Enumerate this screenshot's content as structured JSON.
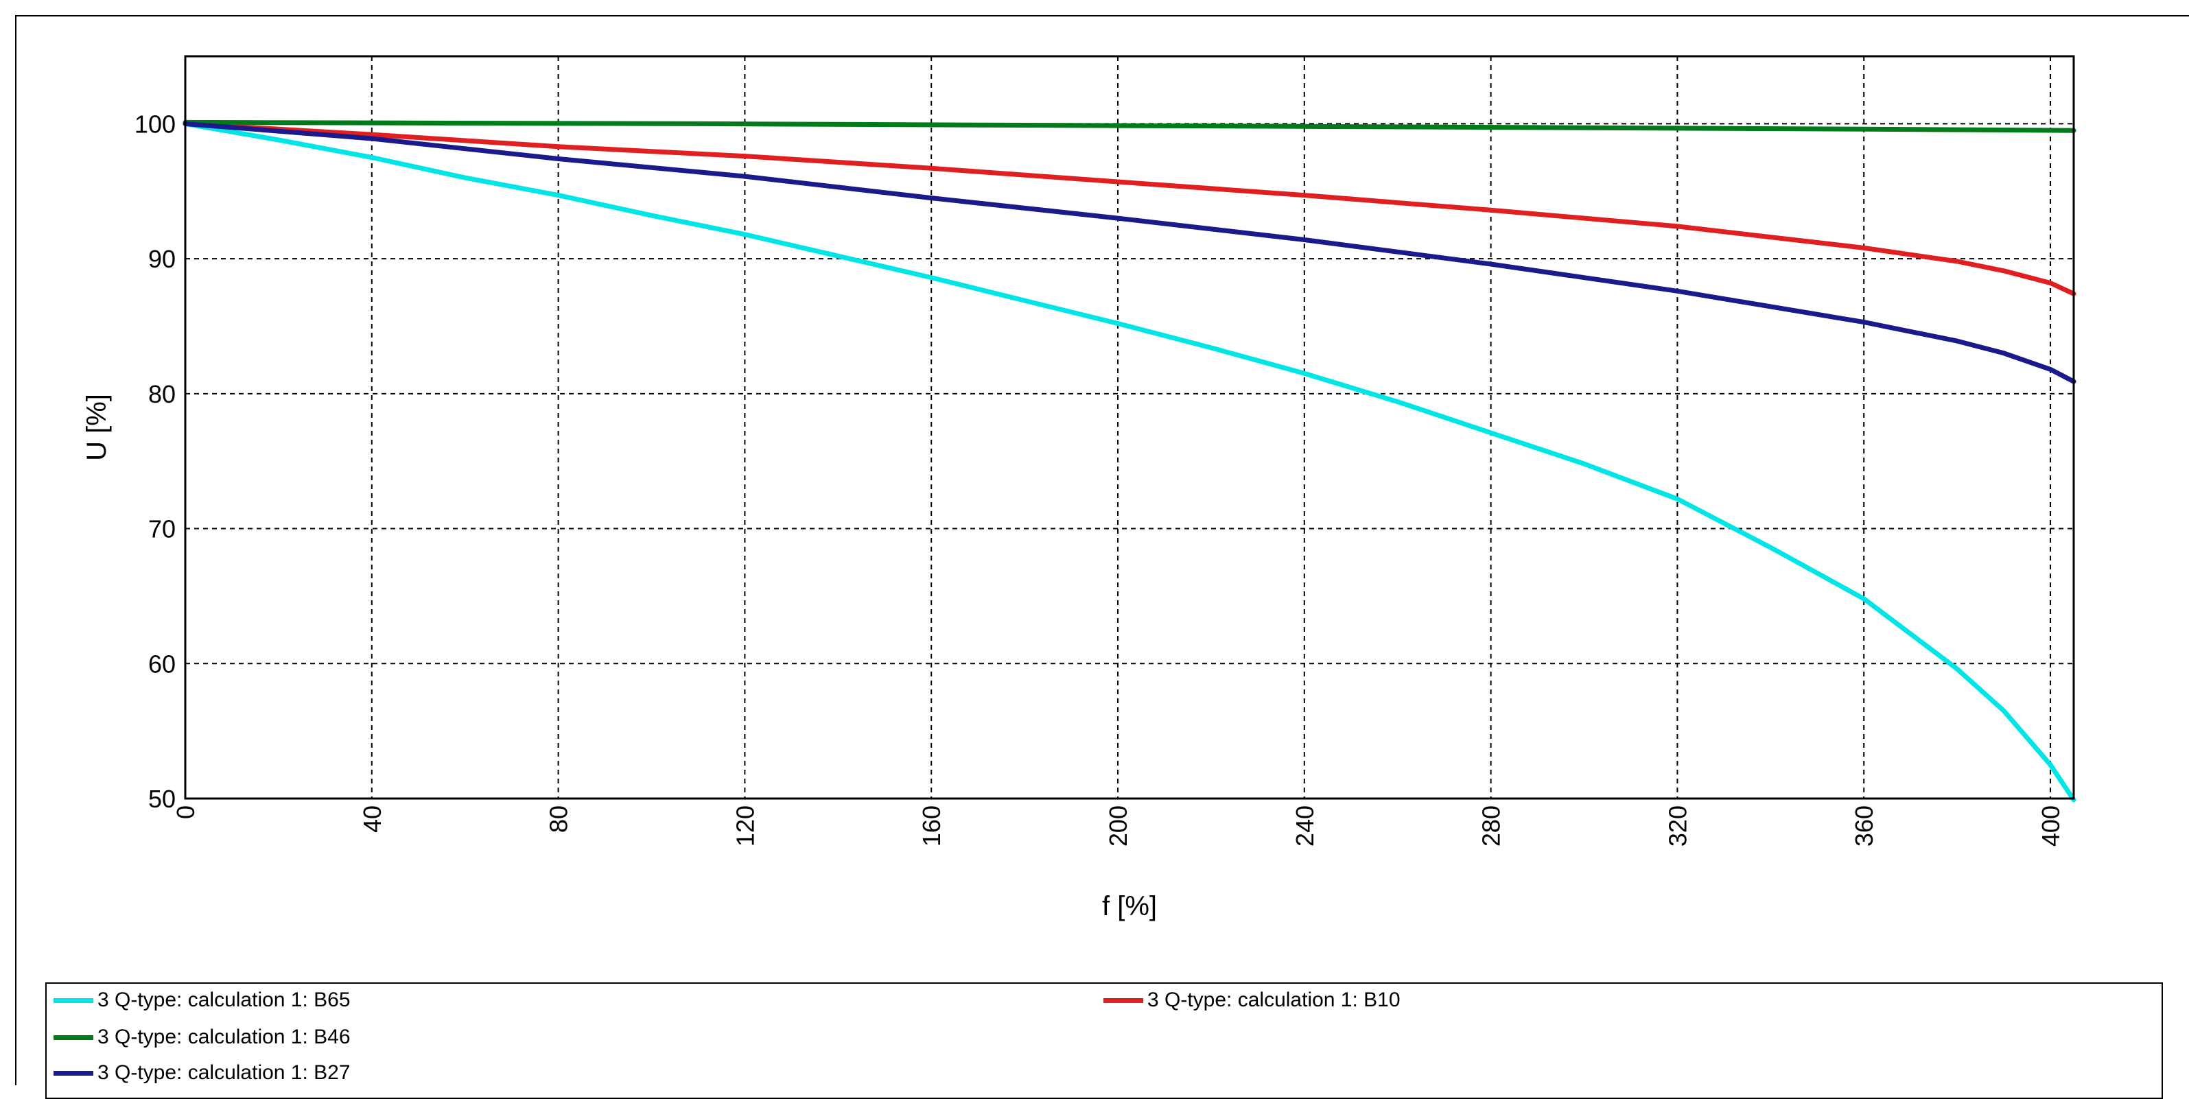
{
  "chart_data": {
    "type": "line",
    "title": "",
    "xlabel": "f [%]",
    "ylabel": "U [%]",
    "xlim": [
      0,
      405
    ],
    "ylim": [
      50,
      105
    ],
    "xticks": [
      0,
      40,
      80,
      120,
      160,
      200,
      240,
      280,
      320,
      360,
      400
    ],
    "yticks": [
      50,
      60,
      70,
      80,
      90,
      100
    ],
    "grid": true,
    "legend_position": "bottom",
    "series": [
      {
        "name": "3 Q-type: calculation 1: B65",
        "color": "#00e5e5",
        "x": [
          0,
          20,
          40,
          60,
          80,
          100,
          120,
          140,
          160,
          180,
          200,
          220,
          240,
          260,
          280,
          300,
          320,
          340,
          360,
          380,
          390,
          400,
          405
        ],
        "y": [
          100,
          98.8,
          97.5,
          96,
          94.7,
          93.2,
          91.8,
          90.2,
          88.6,
          86.9,
          85.2,
          83.4,
          81.5,
          79.4,
          77.1,
          74.8,
          72.2,
          68.6,
          64.8,
          59.6,
          56.5,
          52.5,
          49.9
        ]
      },
      {
        "name": "3 Q-type: calculation 1: B10",
        "color": "#e02020",
        "x": [
          0,
          40,
          80,
          120,
          160,
          200,
          240,
          280,
          320,
          360,
          380,
          390,
          400,
          405
        ],
        "y": [
          100,
          99.2,
          98.3,
          97.6,
          96.7,
          95.7,
          94.7,
          93.6,
          92.4,
          90.8,
          89.8,
          89.1,
          88.2,
          87.4
        ]
      },
      {
        "name": "3 Q-type: calculation 1: B46",
        "color": "#007a1a",
        "x": [
          0,
          110,
          240,
          360,
          405
        ],
        "y": [
          100.1,
          100,
          99.8,
          99.6,
          99.5
        ]
      },
      {
        "name": "3 Q-type: calculation 1: B27",
        "color": "#1a1a8c",
        "x": [
          0,
          40,
          80,
          120,
          160,
          200,
          240,
          280,
          320,
          360,
          380,
          390,
          400,
          405
        ],
        "y": [
          100,
          98.9,
          97.4,
          96.1,
          94.5,
          93.0,
          91.4,
          89.6,
          87.6,
          85.3,
          83.9,
          83.0,
          81.8,
          80.9
        ]
      }
    ]
  }
}
